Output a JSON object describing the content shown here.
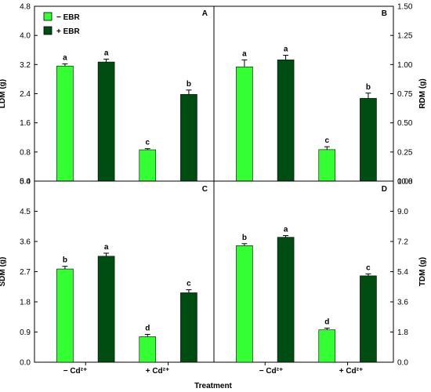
{
  "colors": {
    "minus_ebr": "#33ff33",
    "plus_ebr": "#004d12",
    "bar_stroke": "#000000"
  },
  "legend": {
    "placement": "top-left",
    "items": [
      {
        "label": "− EBR",
        "color": "#33ff33"
      },
      {
        "label": "+ EBR",
        "color": "#004d12"
      }
    ]
  },
  "xlabel": "Treatment",
  "categories": [
    "− Cd²⁺",
    "+ Cd²⁺"
  ],
  "chart_data": [
    {
      "type": "bar",
      "panel": "A",
      "ylabel": "LDM (g)",
      "axis_side": "left",
      "ylim": [
        0,
        4.8
      ],
      "yticks": [
        "0.0",
        "0.8",
        "1.6",
        "2.4",
        "3.2",
        "4.0",
        "4.8"
      ],
      "series": [
        {
          "name": "− EBR",
          "values": [
            3.16,
            0.86
          ],
          "errors": [
            0.06,
            0.03
          ],
          "letters": [
            "a",
            "c"
          ]
        },
        {
          "name": "+ EBR",
          "values": [
            3.27,
            2.38
          ],
          "errors": [
            0.08,
            0.12
          ],
          "letters": [
            "a",
            "b"
          ]
        }
      ]
    },
    {
      "type": "bar",
      "panel": "B",
      "ylabel": "RDM (g)",
      "axis_side": "right",
      "ylim": [
        0,
        1.5
      ],
      "yticks": [
        "0.00",
        "0.25",
        "0.50",
        "0.75",
        "1.00",
        "1.25",
        "1.50"
      ],
      "series": [
        {
          "name": "− EBR",
          "values": [
            0.98,
            0.27
          ],
          "errors": [
            0.06,
            0.025
          ],
          "letters": [
            "a",
            "c"
          ]
        },
        {
          "name": "+ EBR",
          "values": [
            1.04,
            0.71
          ],
          "errors": [
            0.04,
            0.045
          ],
          "letters": [
            "a",
            "b"
          ]
        }
      ]
    },
    {
      "type": "bar",
      "panel": "C",
      "ylabel": "SDM (g)",
      "axis_side": "left",
      "ylim": [
        0,
        5.4
      ],
      "yticks": [
        "0.0",
        "0.9",
        "1.8",
        "2.7",
        "3.6",
        "4.5",
        "5.4"
      ],
      "series": [
        {
          "name": "− EBR",
          "values": [
            2.78,
            0.76
          ],
          "errors": [
            0.08,
            0.07
          ],
          "letters": [
            "b",
            "d"
          ]
        },
        {
          "name": "+ EBR",
          "values": [
            3.16,
            2.07
          ],
          "errors": [
            0.09,
            0.09
          ],
          "letters": [
            "a",
            "c"
          ]
        }
      ]
    },
    {
      "type": "bar",
      "panel": "D",
      "ylabel": "TDM (g)",
      "axis_side": "right",
      "ylim": [
        0,
        10.8
      ],
      "yticks": [
        "0.0",
        "1.8",
        "3.6",
        "5.4",
        "7.2",
        "9.0",
        "10.8"
      ],
      "series": [
        {
          "name": "− EBR",
          "values": [
            6.95,
            1.93
          ],
          "errors": [
            0.12,
            0.1
          ],
          "letters": [
            "b",
            "d"
          ]
        },
        {
          "name": "+ EBR",
          "values": [
            7.45,
            5.15
          ],
          "errors": [
            0.1,
            0.12
          ],
          "letters": [
            "a",
            "c"
          ]
        }
      ]
    }
  ]
}
